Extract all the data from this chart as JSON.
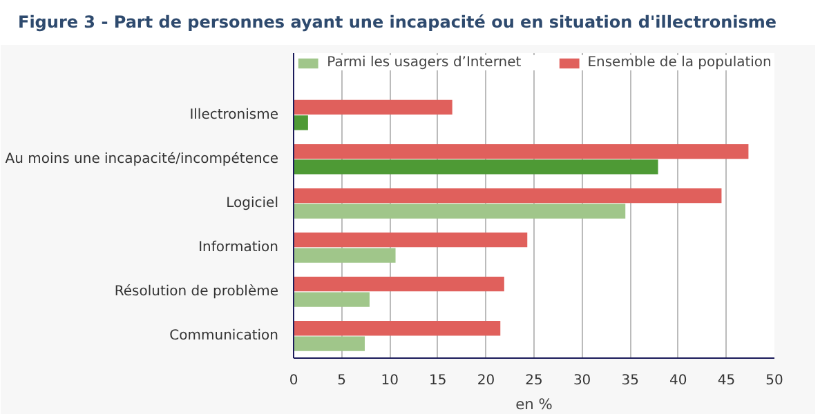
{
  "chart_data": {
    "type": "bar",
    "orientation": "horizontal",
    "title": "Figure 3 - Part de personnes ayant une incapacité ou en situation d'illectronisme",
    "xlabel": "en %",
    "categories": [
      "Illectronisme",
      "Au moins une incapacité/incompétence",
      "Logiciel",
      "Information",
      "Résolution de problème",
      "Communication"
    ],
    "series": [
      {
        "name": "Parmi les usagers d’Internet",
        "color": "#a0c68a",
        "colors": [
          "#4e9a35",
          "#4e9a35",
          "#a0c68a",
          "#a0c68a",
          "#a0c68a",
          "#a0c68a"
        ],
        "values": [
          1.5,
          37.9,
          34.5,
          10.6,
          7.9,
          7.4
        ]
      },
      {
        "name": "Ensemble de la population",
        "color": "#e0605c",
        "values": [
          16.5,
          47.3,
          44.5,
          24.3,
          21.9,
          21.5
        ]
      }
    ],
    "xlim": [
      0,
      50
    ],
    "xticks": [
      0,
      5,
      10,
      15,
      20,
      25,
      30,
      35,
      40,
      45,
      50
    ],
    "grid": "x",
    "legend": "top"
  }
}
